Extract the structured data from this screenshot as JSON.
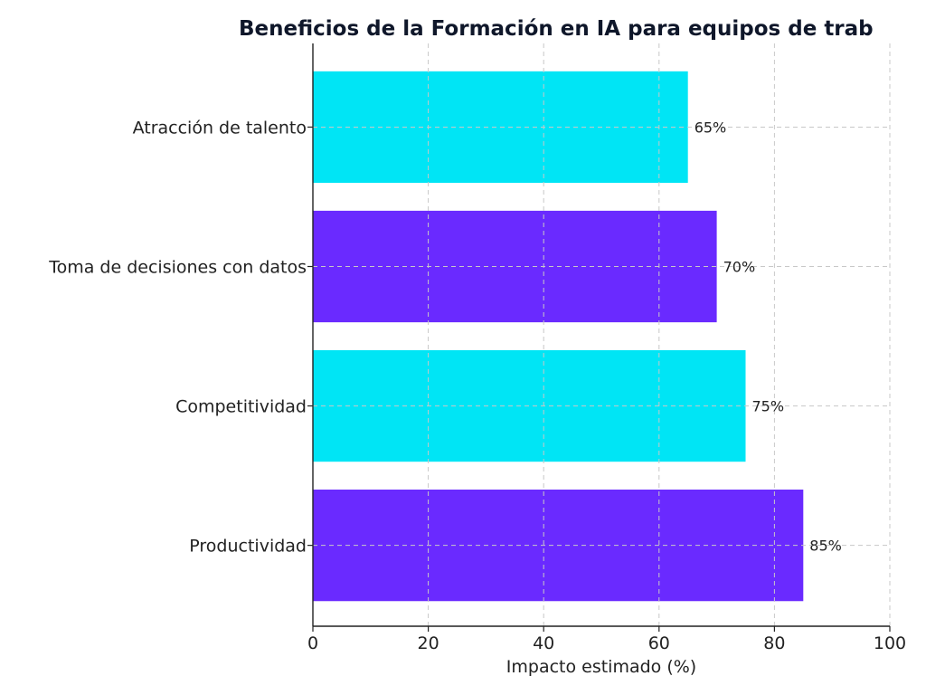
{
  "chart_data": {
    "type": "bar",
    "orientation": "horizontal",
    "title": "Beneficios de la Formación en IA para equipos de trab",
    "xlabel": "Impacto estimado (%)",
    "ylabel": "",
    "categories": [
      "Productividad",
      "Competitividad",
      "Toma de decisiones con datos",
      "Atracción de talento"
    ],
    "values": [
      85,
      75,
      70,
      65
    ],
    "data_labels": [
      "85%",
      "75%",
      "70%",
      "65%"
    ],
    "colors": [
      "#6A2AFF",
      "#00E5F5",
      "#6A2AFF",
      "#00E5F5"
    ],
    "xlim": [
      0,
      100
    ],
    "xticks": [
      0,
      20,
      40,
      60,
      80,
      100
    ],
    "grid": true,
    "legend": "none"
  }
}
